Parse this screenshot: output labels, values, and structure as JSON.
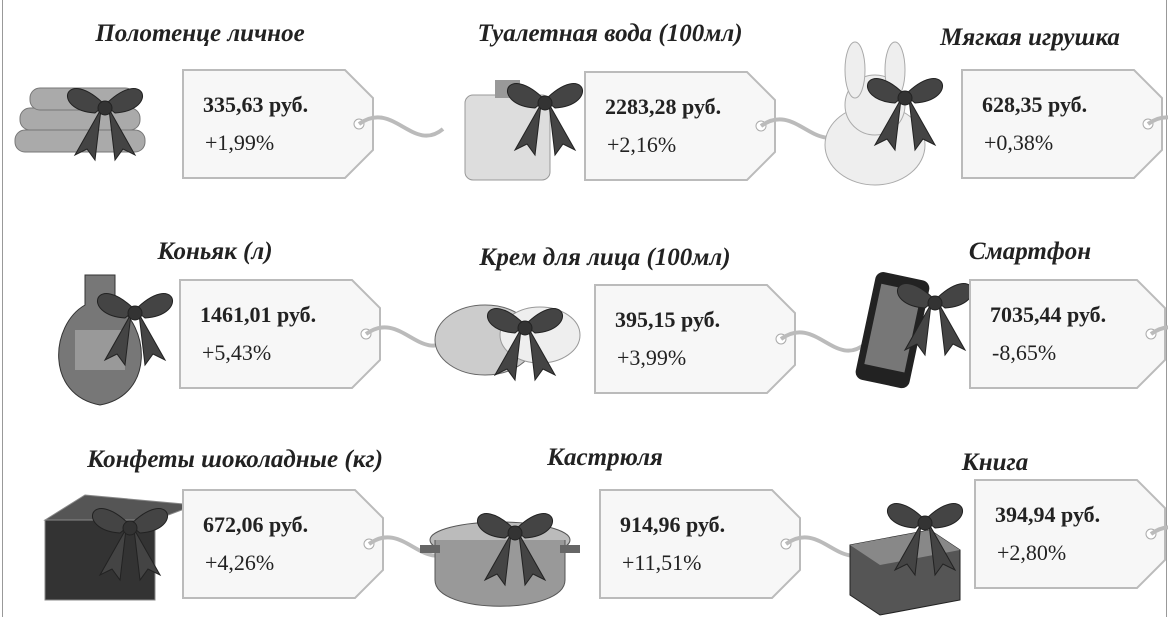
{
  "items": [
    {
      "name": "Полотенце личное",
      "price": "335,63 руб.",
      "change": "+1,99%"
    },
    {
      "name": "Туалетная вода (100мл)",
      "price": "2283,28 руб.",
      "change": "+2,16%"
    },
    {
      "name": "Мягкая игрушка",
      "price": "628,35 руб.",
      "change": "+0,38%"
    },
    {
      "name": "Коньяк (л)",
      "price": "1461,01 руб.",
      "change": "+5,43%"
    },
    {
      "name": "Крем для лица (100мл)",
      "price": "395,15 руб.",
      "change": "+3,99%"
    },
    {
      "name": "Смартфон",
      "price": "7035,44 руб.",
      "change": "-8,65%"
    },
    {
      "name": "Конфеты шоколадные (кг)",
      "price": "672,06 руб.",
      "change": "+4,26%"
    },
    {
      "name": "Кастрюля",
      "price": "914,96 руб.",
      "change": "+11,51%"
    },
    {
      "name": "Книга",
      "price": "394,94 руб.",
      "change": "+2,80%"
    }
  ]
}
